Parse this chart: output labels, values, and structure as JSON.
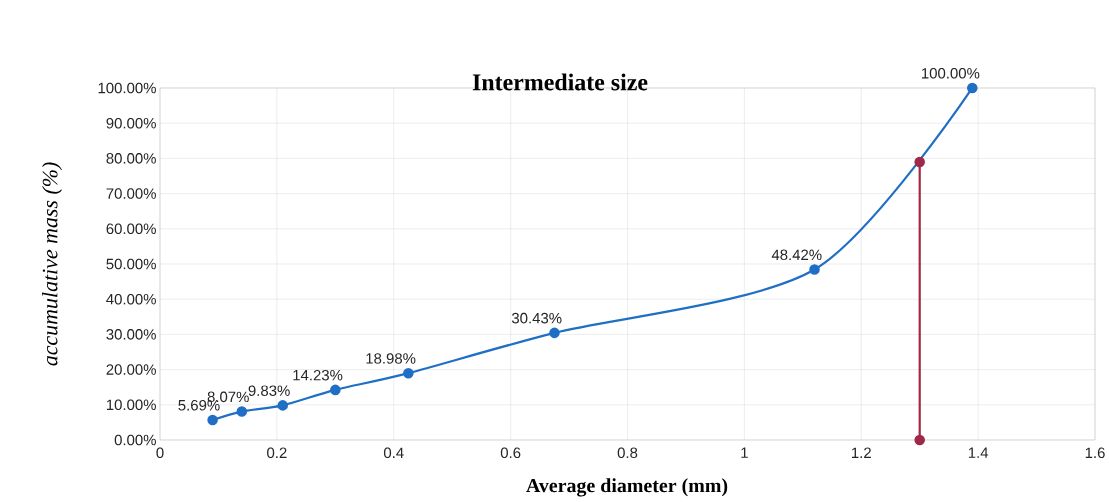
{
  "chart_data": {
    "type": "line",
    "title": "Intermediate size",
    "xlabel": "Average diameter (mm)",
    "ylabel": "accumulative mass (%)",
    "series": [
      {
        "color": "#1f6fc4",
        "x": [
          0.09,
          0.14,
          0.21,
          0.3,
          0.425,
          0.675,
          1.12,
          1.39
        ],
        "values": [
          5.69,
          8.07,
          9.83,
          14.23,
          18.98,
          30.43,
          48.42,
          100
        ],
        "value_labels": [
          "5.69%",
          "8.07%",
          "9.83%",
          "14.23%",
          "18.98%",
          "30.43%",
          "48.42%",
          "100.00%"
        ]
      },
      {
        "color": "#a0284a",
        "x": [
          1.3,
          1.3
        ],
        "values": [
          0,
          79
        ]
      }
    ],
    "xlim": [
      0,
      1.6
    ],
    "xticks": [
      0,
      0.2,
      0.4,
      0.6,
      0.8,
      1,
      1.2,
      1.4,
      1.6
    ],
    "ylim": [
      0,
      100
    ],
    "yticks": [
      {
        "value": 0,
        "label": "0.00%"
      },
      {
        "value": 10,
        "label": "10.00%"
      },
      {
        "value": 20,
        "label": "20.00%"
      },
      {
        "value": 30,
        "label": "30.00%"
      },
      {
        "value": 40,
        "label": "40.00%"
      },
      {
        "value": 50,
        "label": "50.00%"
      },
      {
        "value": 60,
        "label": "60.00%"
      },
      {
        "value": 70,
        "label": "70.00%"
      },
      {
        "value": 80,
        "label": "80.00%"
      },
      {
        "value": 90,
        "label": "90.00%"
      },
      {
        "value": 100,
        "label": "100.00%"
      }
    ],
    "grid": true,
    "marker": "circle",
    "line_style": "solid"
  }
}
